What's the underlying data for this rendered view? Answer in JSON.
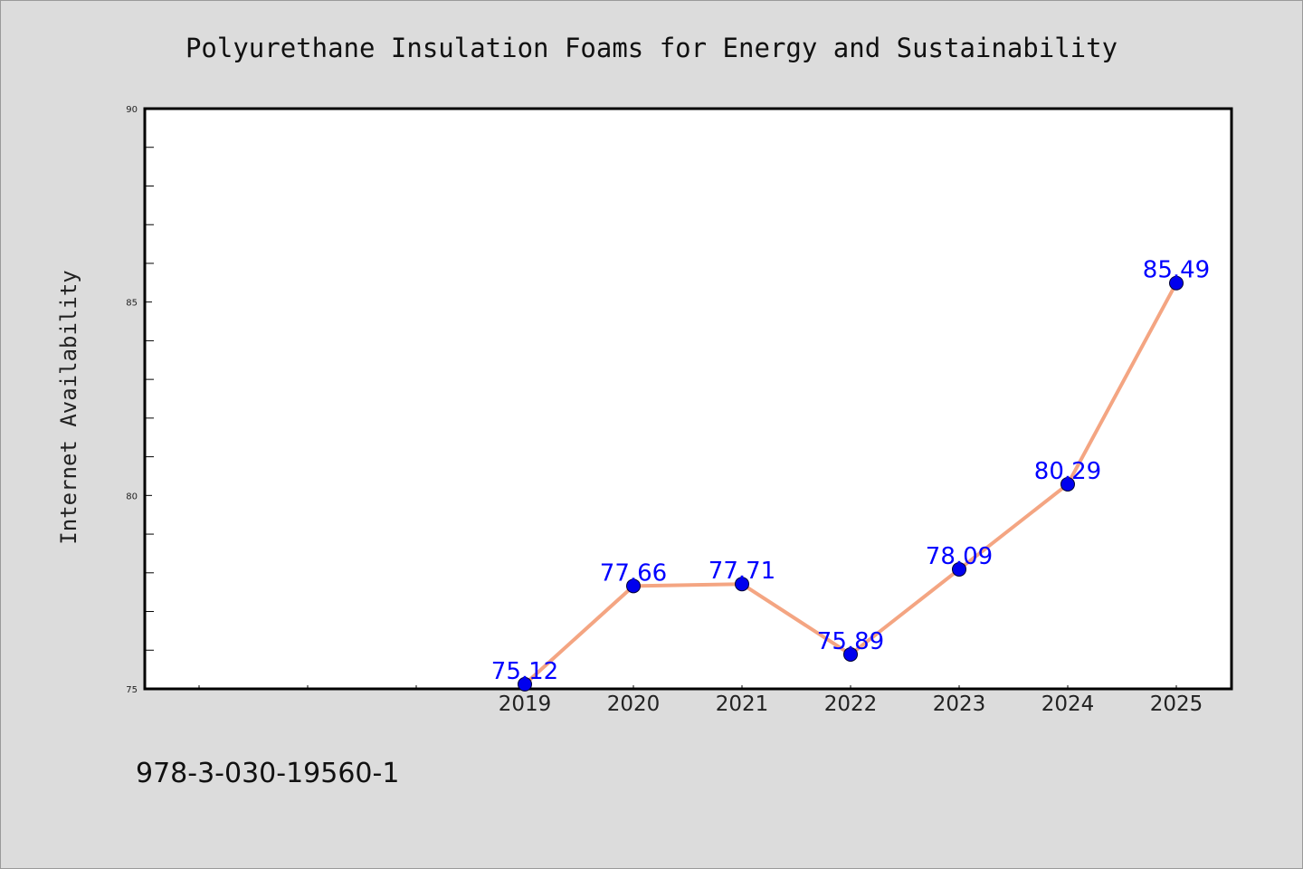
{
  "chart_data": {
    "type": "line",
    "title": "Polyurethane Insulation Foams for Energy and Sustainability",
    "xlabel": "",
    "ylabel": "Internet Availability",
    "categories": [
      "2019",
      "2020",
      "2021",
      "2022",
      "2023",
      "2024",
      "2025"
    ],
    "series": [
      {
        "values": [
          75.12,
          77.66,
          77.71,
          75.89,
          78.09,
          80.29,
          85.49
        ],
        "data_labels": [
          "75.12",
          "77.66",
          "77.71",
          "75.89",
          "78.09",
          "80.29",
          "85.49"
        ]
      }
    ],
    "ylim": [
      75,
      90
    ],
    "yticks": [
      "75",
      "80",
      "85",
      "90"
    ],
    "grid": false,
    "legend": "none",
    "colors": {
      "line": "#f4a582",
      "marker": "#0000ee",
      "marker_edge": "#000033",
      "data_label": "#0000ff",
      "plot_background": "#ffffff",
      "figure_background": "#dcdcdc"
    }
  },
  "footer": {
    "isbn": "978-3-030-19560-1"
  }
}
